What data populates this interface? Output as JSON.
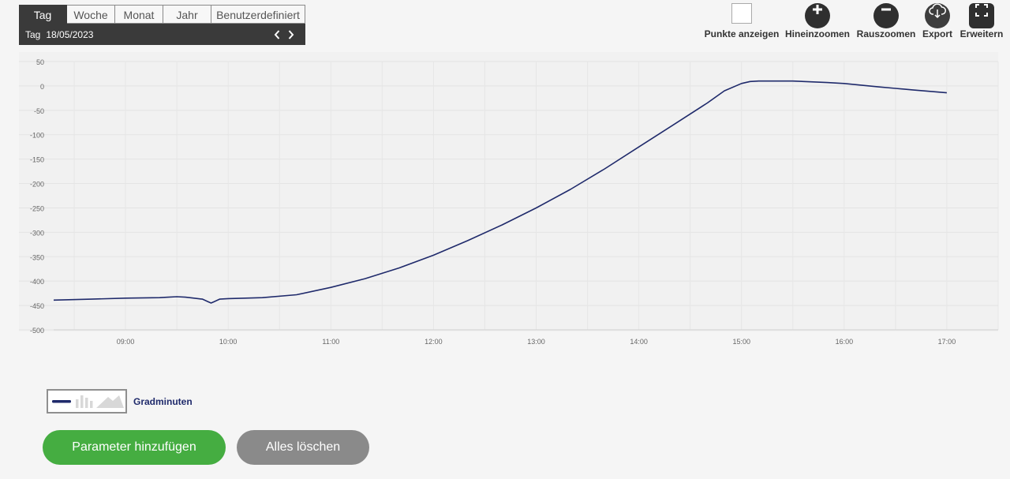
{
  "period": {
    "tabs": [
      "Tag",
      "Woche",
      "Monat",
      "Jahr",
      "Benutzerdefiniert"
    ],
    "active": "Tag",
    "current_label": "Tag",
    "current_date": "18/05/2023"
  },
  "toolbar": {
    "show_points": "Punkte anzeigen",
    "zoom_in": "Hineinzoomen",
    "zoom_out": "Rauszoomen",
    "export": "Export",
    "expand": "Erweitern"
  },
  "chart_data": {
    "type": "line",
    "title": "",
    "xlabel": "",
    "ylabel": "",
    "ylim": [
      -500,
      50
    ],
    "xlim": [
      "08:18",
      "17:30"
    ],
    "y_ticks": [
      50,
      0,
      -50,
      -100,
      -150,
      -200,
      -250,
      -300,
      -350,
      -400,
      -450,
      -500
    ],
    "x_ticks": [
      "09:00",
      "10:00",
      "11:00",
      "12:00",
      "13:00",
      "14:00",
      "15:00",
      "16:00",
      "17:00"
    ],
    "grid": true,
    "series": [
      {
        "name": "Gradminuten",
        "color": "#1f2a6b",
        "points": [
          [
            "08:18",
            -439
          ],
          [
            "08:40",
            -437
          ],
          [
            "09:00",
            -435
          ],
          [
            "09:20",
            -434
          ],
          [
            "09:25",
            -433
          ],
          [
            "09:30",
            -432
          ],
          [
            "09:35",
            -433
          ],
          [
            "09:40",
            -435
          ],
          [
            "09:45",
            -437
          ],
          [
            "09:48",
            -442
          ],
          [
            "09:50",
            -445
          ],
          [
            "09:52",
            -442
          ],
          [
            "09:55",
            -437
          ],
          [
            "10:00",
            -436
          ],
          [
            "10:20",
            -434
          ],
          [
            "10:40",
            -428
          ],
          [
            "11:00",
            -413
          ],
          [
            "11:20",
            -395
          ],
          [
            "11:40",
            -373
          ],
          [
            "12:00",
            -347
          ],
          [
            "12:20",
            -317
          ],
          [
            "12:40",
            -285
          ],
          [
            "13:00",
            -250
          ],
          [
            "13:20",
            -212
          ],
          [
            "13:40",
            -170
          ],
          [
            "14:00",
            -125
          ],
          [
            "14:20",
            -80
          ],
          [
            "14:40",
            -35
          ],
          [
            "14:50",
            -10
          ],
          [
            "15:00",
            5
          ],
          [
            "15:05",
            9
          ],
          [
            "15:10",
            10
          ],
          [
            "15:30",
            10
          ],
          [
            "15:50",
            7
          ],
          [
            "16:00",
            5
          ],
          [
            "16:20",
            -2
          ],
          [
            "16:40",
            -8
          ],
          [
            "17:00",
            -14
          ],
          [
            "16:30",
            -5
          ]
        ]
      }
    ]
  },
  "legend": {
    "series_name": "Gradminuten"
  },
  "actions": {
    "add_parameter": "Parameter hinzufügen",
    "clear_all": "Alles löschen"
  },
  "colors": {
    "line": "#1f2a6b",
    "add_button": "#45ad41",
    "clear_button": "#8a8a8a",
    "dark": "#3a3a3a"
  },
  "icons": {
    "zoom_in": "plus-circle-icon",
    "zoom_out": "minus-circle-icon",
    "export": "cloud-download-icon",
    "expand": "fullscreen-icon",
    "prev": "chevron-left-icon",
    "next": "chevron-right-icon"
  }
}
